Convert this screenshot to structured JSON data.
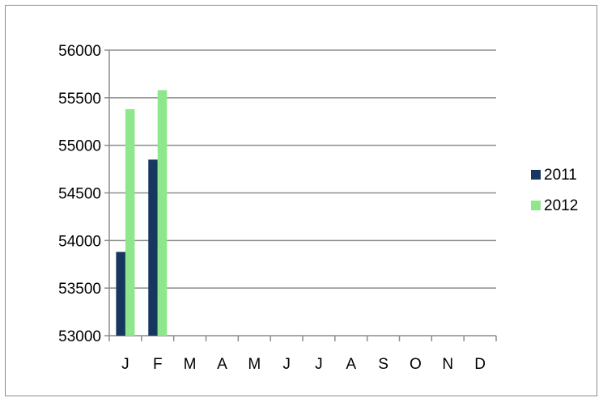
{
  "chart_data": {
    "type": "bar",
    "categories": [
      "J",
      "F",
      "M",
      "A",
      "M",
      "J",
      "J",
      "A",
      "S",
      "O",
      "N",
      "D"
    ],
    "series": [
      {
        "name": "2011",
        "values": [
          53880,
          54850,
          null,
          null,
          null,
          null,
          null,
          null,
          null,
          null,
          null,
          null
        ],
        "color": "#17375e"
      },
      {
        "name": "2012",
        "values": [
          55380,
          55580,
          null,
          null,
          null,
          null,
          null,
          null,
          null,
          null,
          null,
          null
        ],
        "color": "#8ee88b"
      }
    ],
    "ylim": [
      53000,
      56000
    ],
    "yticks": [
      53000,
      53500,
      54000,
      54500,
      55000,
      55500,
      56000
    ],
    "grid": true,
    "legend": "right",
    "colors": {
      "grid": "#8c8c8c",
      "axis": "#8c8c8c"
    }
  }
}
